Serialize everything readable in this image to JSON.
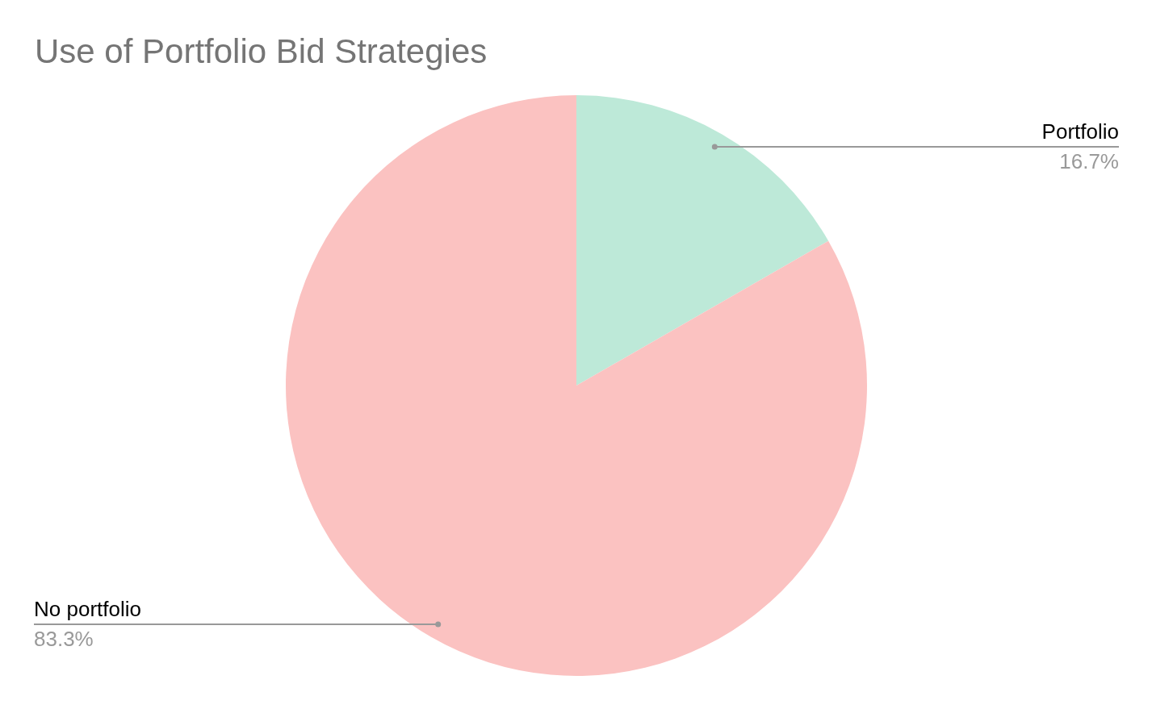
{
  "chart_data": {
    "type": "pie",
    "title": "Use of Portfolio Bid Strategies",
    "categories": [
      "Portfolio",
      "No portfolio"
    ],
    "values": [
      16.7,
      83.3
    ],
    "colors": [
      "#bde9d8",
      "#fbc2c1"
    ],
    "value_labels": [
      "16.7%",
      "83.3%"
    ]
  }
}
